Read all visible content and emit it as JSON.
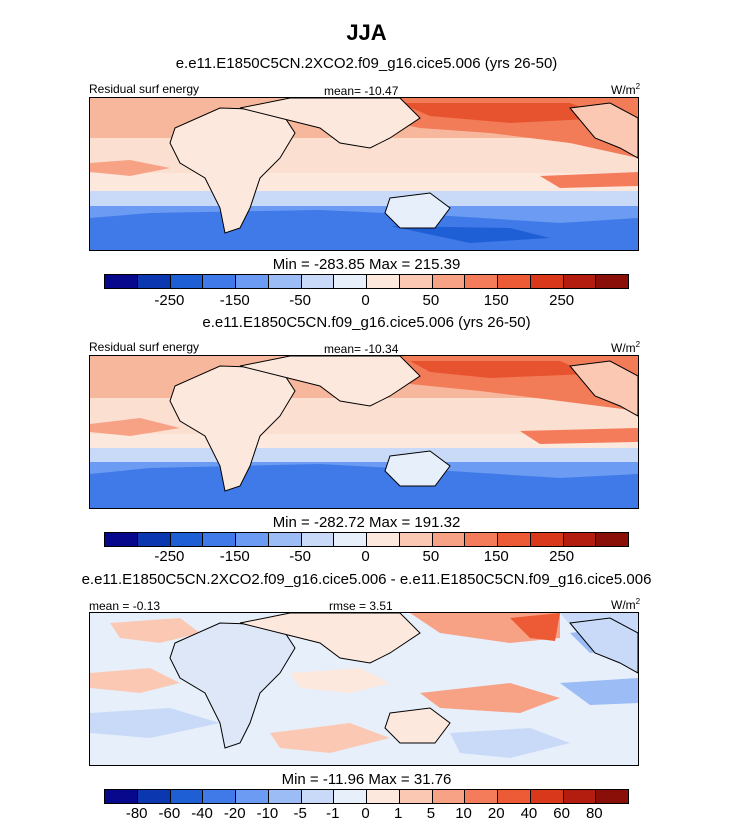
{
  "title": "JJA",
  "colors": {
    "cbar": [
      "#08088c",
      "#0b37b0",
      "#1f5fd6",
      "#3f7ae8",
      "#6b9bf2",
      "#9bbcf5",
      "#c8daf7",
      "#e7effb",
      "#fde8dd",
      "#fbc9b3",
      "#f7a185",
      "#f47c5b",
      "#ec5a36",
      "#d9381b",
      "#b31d0f",
      "#8a0f08"
    ],
    "land_stroke": "#000000"
  },
  "panels": [
    {
      "subtitle": "e.e11.E1850C5CN.2XCO2.f09_g16.cice5.006 (yrs 26-50)",
      "left_label": "Residual surf energy",
      "center_label": "mean= -10.47",
      "unit": "W/m",
      "unit_sup": "2",
      "minmax": "Min = -283.85 Max = 215.39",
      "ticks": [
        "-250",
        "-150",
        "-50",
        "0",
        "50",
        "150",
        "250"
      ]
    },
    {
      "subtitle": "e.e11.E1850C5CN.f09_g16.cice5.006 (yrs 26-50)",
      "left_label": "Residual surf energy",
      "center_label": "mean= -10.34",
      "unit": "W/m",
      "unit_sup": "2",
      "minmax": "Min = -282.72 Max = 191.32",
      "ticks": [
        "-250",
        "-150",
        "-50",
        "0",
        "50",
        "150",
        "250"
      ]
    },
    {
      "subtitle": "e.e11.E1850C5CN.2XCO2.f09_g16.cice5.006 - e.e11.E1850C5CN.f09_g16.cice5.006",
      "left_label": "mean =  -0.13",
      "center_label": "rmse =   3.51",
      "unit": "W/m",
      "unit_sup": "2",
      "minmax": "Min = -11.96 Max = 31.76",
      "ticks": [
        "-80",
        "-60",
        "-40",
        "-20",
        "-10",
        "-5",
        "-1",
        "0",
        "1",
        "5",
        "10",
        "20",
        "40",
        "60",
        "80"
      ]
    }
  ],
  "chart_data": [
    {
      "type": "heatmap",
      "season": "JJA",
      "title": "e.e11.E1850C5CN.2XCO2.f09_g16.cice5.006 (yrs 26-50)",
      "variable": "Residual surf energy",
      "units": "W/m2",
      "mean": -10.47,
      "min": -283.85,
      "max": 215.39,
      "colorbar_levels": [
        -300,
        -250,
        -200,
        -150,
        -100,
        -50,
        -25,
        0,
        25,
        50,
        100,
        150,
        200,
        250,
        300
      ],
      "colorbar_tick_labels": [
        "-250",
        "-150",
        "-50",
        "0",
        "50",
        "150",
        "250"
      ]
    },
    {
      "type": "heatmap",
      "season": "JJA",
      "title": "e.e11.E1850C5CN.f09_g16.cice5.006 (yrs 26-50)",
      "variable": "Residual surf energy",
      "units": "W/m2",
      "mean": -10.34,
      "min": -282.72,
      "max": 191.32,
      "colorbar_levels": [
        -300,
        -250,
        -200,
        -150,
        -100,
        -50,
        -25,
        0,
        25,
        50,
        100,
        150,
        200,
        250,
        300
      ],
      "colorbar_tick_labels": [
        "-250",
        "-150",
        "-50",
        "0",
        "50",
        "150",
        "250"
      ]
    },
    {
      "type": "heatmap",
      "season": "JJA",
      "title": "e.e11.E1850C5CN.2XCO2.f09_g16.cice5.006 - e.e11.E1850C5CN.f09_g16.cice5.006",
      "units": "W/m2",
      "mean": -0.13,
      "rmse": 3.51,
      "min": -11.96,
      "max": 31.76,
      "colorbar_tick_labels": [
        "-80",
        "-60",
        "-40",
        "-20",
        "-10",
        "-5",
        "-1",
        "0",
        "1",
        "5",
        "10",
        "20",
        "40",
        "60",
        "80"
      ]
    }
  ]
}
